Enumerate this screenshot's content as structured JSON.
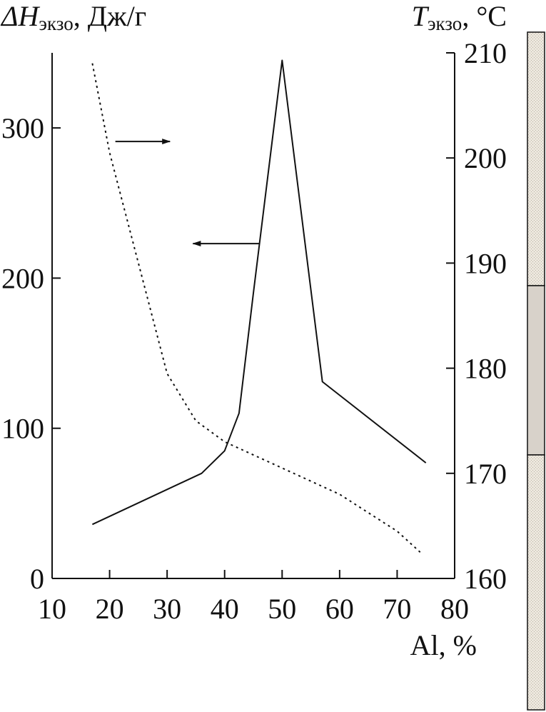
{
  "chart_data": {
    "type": "line",
    "x": {
      "label_text": "Al, %",
      "range": [
        10,
        80
      ],
      "ticks": [
        10,
        20,
        30,
        40,
        50,
        60,
        70,
        80
      ]
    },
    "y_left": {
      "label_main": "ΔH",
      "label_sub": "экзо",
      "label_rest": ", Дж/г",
      "range": [
        0,
        350
      ],
      "ticks": [
        0,
        100,
        200,
        300
      ]
    },
    "y_right": {
      "label_main": "T",
      "label_sub": "экзо",
      "label_rest": ", °C",
      "range": [
        160,
        210
      ],
      "ticks": [
        160,
        170,
        180,
        190,
        200,
        210
      ]
    },
    "series": [
      {
        "axis": "left",
        "style": "solid",
        "color": "#111111",
        "points": [
          [
            17,
            36
          ],
          [
            36,
            70
          ],
          [
            40,
            85
          ],
          [
            42.5,
            110
          ],
          [
            45,
            190
          ],
          [
            50,
            345
          ],
          [
            57,
            131
          ],
          [
            75,
            77
          ]
        ]
      },
      {
        "axis": "right",
        "style": "dotted",
        "color": "#111111",
        "points": [
          [
            17,
            209
          ],
          [
            20,
            200.5
          ],
          [
            25,
            190
          ],
          [
            30,
            179.5
          ],
          [
            35,
            175
          ],
          [
            40,
            173
          ],
          [
            50,
            170.5
          ],
          [
            60,
            168
          ],
          [
            70,
            164.5
          ],
          [
            74,
            162.5
          ]
        ]
      }
    ],
    "annotations": [
      {
        "type": "arrow",
        "direction": "right",
        "points_to_axis": "right",
        "from": [
          21,
          291
        ],
        "to": [
          30.5,
          291
        ]
      },
      {
        "type": "arrow",
        "direction": "left",
        "points_to_axis": "left",
        "from": [
          46,
          223
        ],
        "to": [
          34.5,
          223
        ]
      }
    ],
    "side_bar": {
      "segments": [
        {
          "fill": "#ebe6dc",
          "pattern": true
        },
        {
          "fill": "#d8d2ca",
          "pattern": false
        },
        {
          "fill": "#ebe6dc",
          "pattern": true
        }
      ]
    }
  }
}
